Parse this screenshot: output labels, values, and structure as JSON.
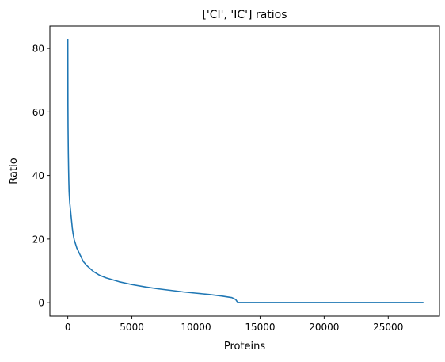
{
  "chart_data": {
    "type": "line",
    "title": "['CI', 'IC'] ratios",
    "xlabel": "Proteins",
    "ylabel": "Ratio",
    "xlim": [
      -1400,
      29000
    ],
    "ylim": [
      -4.2,
      87
    ],
    "x_ticks": [
      0,
      5000,
      10000,
      15000,
      20000,
      25000
    ],
    "x_tick_labels": [
      "0",
      "5000",
      "10000",
      "15000",
      "20000",
      "25000"
    ],
    "y_ticks": [
      0,
      20,
      40,
      60,
      80
    ],
    "y_tick_labels": [
      "0",
      "20",
      "40",
      "60",
      "80"
    ],
    "grid": false,
    "legend": "none",
    "series": [
      {
        "color": "#1f77b4",
        "x": [
          0,
          10,
          20,
          40,
          60,
          80,
          100,
          120,
          150,
          200,
          250,
          300,
          350,
          400,
          450,
          500,
          600,
          700,
          800,
          900,
          1000,
          1200,
          1500,
          2000,
          2500,
          3000,
          4000,
          5000,
          6000,
          7000,
          8000,
          9000,
          10000,
          11000,
          12000,
          12800,
          13100,
          13200,
          13300,
          14000,
          16000,
          18000,
          20000,
          22000,
          24000,
          26000,
          27700
        ],
        "y": [
          82.8,
          62,
          55,
          47,
          42,
          38,
          35,
          33.5,
          31.5,
          29.5,
          27.5,
          25.5,
          23.5,
          22,
          20.8,
          19.8,
          18.5,
          17.2,
          16.4,
          15.5,
          14.7,
          13.0,
          11.6,
          9.8,
          8.6,
          7.8,
          6.6,
          5.7,
          5.0,
          4.4,
          3.9,
          3.4,
          3.0,
          2.6,
          2.1,
          1.6,
          1.0,
          0.4,
          0.05,
          0.05,
          0.05,
          0.05,
          0.05,
          0.05,
          0.05,
          0.05,
          0.05
        ]
      }
    ]
  }
}
